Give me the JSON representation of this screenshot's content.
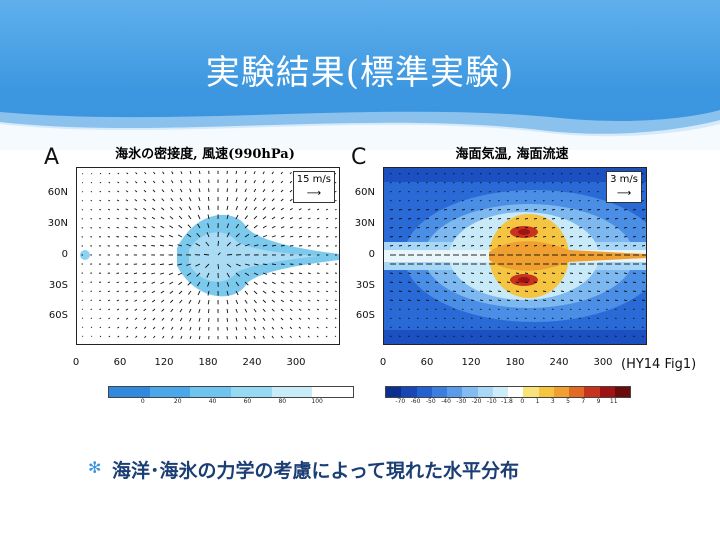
{
  "slide": {
    "title": "実験結果(標準実験)",
    "citation": "(HY14 Fig1)",
    "bullet_text": "海洋･海氷の力学の考慮によって現れた水平分布",
    "colors": {
      "header": "#3d97e0",
      "body_text": "#1b3e74"
    }
  },
  "panels": [
    {
      "letter": "A",
      "title": "海氷の密接度, 風速(990hPa)",
      "ref_vector": "15 m/s",
      "y_ticks": [
        "60N",
        "30N",
        "0",
        "30S",
        "60S"
      ],
      "x_ticks": [
        "0",
        "60",
        "120",
        "180",
        "240",
        "300"
      ],
      "colorbar_labels": [
        "0",
        "20",
        "40",
        "60",
        "80",
        "100"
      ],
      "colorbar_colors": [
        "#2f89de",
        "#4aa7ea",
        "#6ec4ef",
        "#96d9f3",
        "#c7ecf8",
        "#ffffff"
      ]
    },
    {
      "letter": "C",
      "title": "海面気温, 海面流速",
      "ref_vector": "3 m/s",
      "y_ticks": [
        "60N",
        "30N",
        "0",
        "30S",
        "60S"
      ],
      "x_ticks": [
        "0",
        "60",
        "120",
        "180",
        "240",
        "300"
      ],
      "colorbar_labels": [
        "-70",
        "-60",
        "-50",
        "-40",
        "-30",
        "-20",
        "-10",
        "-1.8",
        "0",
        "1",
        "3",
        "5",
        "7",
        "9",
        "11"
      ],
      "colorbar_colors": [
        "#0b2f8f",
        "#1746b5",
        "#2361d0",
        "#3a7fe0",
        "#5a9cea",
        "#82bcf2",
        "#a9d7f6",
        "#cdecf8",
        "#ffffff",
        "#f8e27a",
        "#f5c542",
        "#f0a030",
        "#e36a25",
        "#c8331d",
        "#9e1414",
        "#6b0a0a"
      ]
    }
  ]
}
